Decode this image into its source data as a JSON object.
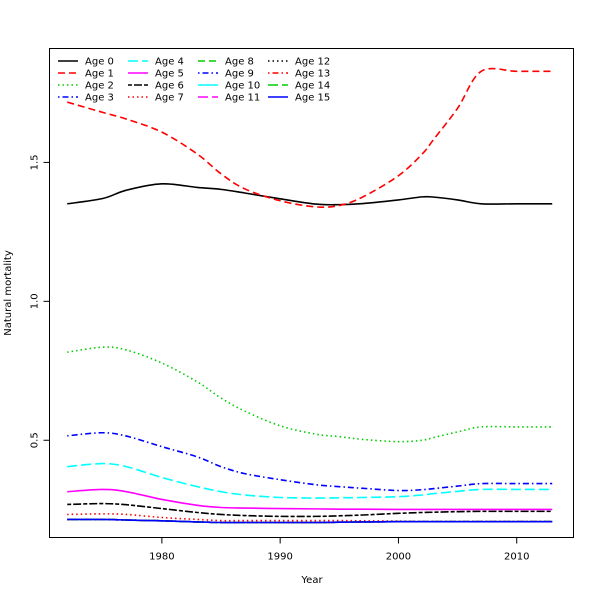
{
  "chart_data": {
    "type": "line",
    "title": "",
    "xlabel": "Year",
    "ylabel": "Natural mortality",
    "xlim": [
      1970.5,
      2014.8
    ],
    "ylim": [
      0.15,
      1.91
    ],
    "xticks": [
      1980,
      1990,
      2000,
      2010
    ],
    "yticks": [
      0.5,
      1.0,
      1.5
    ],
    "ytick_labels": [
      "0.5",
      "1.0",
      "1.5"
    ],
    "grid": false,
    "legend_position": "top-left",
    "legend_columns": 4,
    "x": [
      1972,
      1975,
      1977,
      1980,
      1983,
      1985,
      1987,
      1990,
      1993,
      1995,
      1997,
      2000,
      2002,
      2003,
      2005,
      2007,
      2010,
      2013
    ],
    "series": [
      {
        "name": "Age 0",
        "color": "#000000",
        "dash": "solid",
        "values": [
          1.351,
          1.37,
          1.4,
          1.423,
          1.41,
          1.403,
          1.39,
          1.369,
          1.35,
          1.348,
          1.352,
          1.365,
          1.376,
          1.375,
          1.365,
          1.351,
          1.351,
          1.351
        ]
      },
      {
        "name": "Age 1",
        "color": "#ff0000",
        "dash": "dashed",
        "values": [
          1.717,
          1.68,
          1.656,
          1.609,
          1.53,
          1.459,
          1.405,
          1.362,
          1.34,
          1.345,
          1.376,
          1.452,
          1.53,
          1.584,
          1.695,
          1.828,
          1.828,
          1.828
        ]
      },
      {
        "name": "Age 2",
        "color": "#00cd00",
        "dash": "dotted",
        "values": [
          0.817,
          0.835,
          0.825,
          0.778,
          0.71,
          0.652,
          0.605,
          0.552,
          0.522,
          0.513,
          0.503,
          0.495,
          0.5,
          0.51,
          0.53,
          0.548,
          0.548,
          0.548
        ]
      },
      {
        "name": "Age 3",
        "color": "#0000ff",
        "dash": "dotdash",
        "values": [
          0.516,
          0.527,
          0.515,
          0.477,
          0.44,
          0.405,
          0.38,
          0.358,
          0.34,
          0.333,
          0.327,
          0.319,
          0.322,
          0.326,
          0.335,
          0.344,
          0.344,
          0.344
        ]
      },
      {
        "name": "Age 4",
        "color": "#00ffff",
        "dash": "longdash",
        "values": [
          0.405,
          0.416,
          0.405,
          0.366,
          0.333,
          0.315,
          0.303,
          0.294,
          0.292,
          0.293,
          0.294,
          0.297,
          0.303,
          0.308,
          0.316,
          0.323,
          0.323,
          0.323
        ]
      },
      {
        "name": "Age 5",
        "color": "#ff00ff",
        "dash": "solid",
        "values": [
          0.315,
          0.323,
          0.315,
          0.287,
          0.266,
          0.258,
          0.256,
          0.254,
          0.253,
          0.252,
          0.252,
          0.251,
          0.251,
          0.251,
          0.251,
          0.251,
          0.251,
          0.251
        ]
      },
      {
        "name": "Age 6",
        "color": "#000000",
        "dash": "twodash",
        "values": [
          0.269,
          0.272,
          0.268,
          0.254,
          0.24,
          0.233,
          0.229,
          0.226,
          0.226,
          0.228,
          0.231,
          0.237,
          0.24,
          0.241,
          0.243,
          0.244,
          0.244,
          0.244
        ]
      },
      {
        "name": "Age 7",
        "color": "#ff0000",
        "dash": "dotted",
        "values": [
          0.233,
          0.235,
          0.233,
          0.222,
          0.215,
          0.211,
          0.211,
          0.211,
          0.211,
          0.211,
          0.21,
          0.209,
          0.208,
          0.208,
          0.208,
          0.208,
          0.208,
          0.208
        ]
      },
      {
        "name": "Age 8",
        "color": "#00cd00",
        "dash": "dashed",
        "values": [
          0.215,
          0.215,
          0.213,
          0.21,
          0.206,
          0.204,
          0.204,
          0.204,
          0.204,
          0.205,
          0.206,
          0.207,
          0.207,
          0.207,
          0.207,
          0.207,
          0.207,
          0.207
        ]
      },
      {
        "name": "Age 9",
        "color": "#0000ff",
        "dash": "dotdash",
        "values": [
          0.215,
          0.215,
          0.213,
          0.21,
          0.206,
          0.204,
          0.204,
          0.204,
          0.204,
          0.205,
          0.206,
          0.207,
          0.207,
          0.207,
          0.207,
          0.207,
          0.207,
          0.207
        ]
      },
      {
        "name": "Age 10",
        "color": "#00ffff",
        "dash": "solid",
        "values": [
          0.215,
          0.215,
          0.213,
          0.21,
          0.206,
          0.204,
          0.204,
          0.204,
          0.204,
          0.205,
          0.206,
          0.207,
          0.207,
          0.207,
          0.207,
          0.207,
          0.207,
          0.207
        ]
      },
      {
        "name": "Age 11",
        "color": "#ff00ff",
        "dash": "longdash",
        "values": [
          0.215,
          0.215,
          0.213,
          0.21,
          0.206,
          0.204,
          0.204,
          0.204,
          0.204,
          0.205,
          0.206,
          0.207,
          0.207,
          0.207,
          0.207,
          0.207,
          0.207,
          0.207
        ]
      },
      {
        "name": "Age 12",
        "color": "#000000",
        "dash": "dotted",
        "values": [
          0.215,
          0.215,
          0.213,
          0.21,
          0.206,
          0.204,
          0.204,
          0.204,
          0.204,
          0.205,
          0.206,
          0.207,
          0.207,
          0.207,
          0.207,
          0.207,
          0.207,
          0.207
        ]
      },
      {
        "name": "Age 13",
        "color": "#ff0000",
        "dash": "dotdash",
        "values": [
          0.215,
          0.215,
          0.213,
          0.21,
          0.206,
          0.204,
          0.204,
          0.204,
          0.204,
          0.205,
          0.206,
          0.207,
          0.207,
          0.207,
          0.207,
          0.207,
          0.207,
          0.207
        ]
      },
      {
        "name": "Age 14",
        "color": "#00cd00",
        "dash": "longdash",
        "values": [
          0.215,
          0.215,
          0.213,
          0.21,
          0.206,
          0.204,
          0.204,
          0.204,
          0.204,
          0.205,
          0.206,
          0.207,
          0.207,
          0.207,
          0.207,
          0.207,
          0.207,
          0.207
        ]
      },
      {
        "name": "Age 15",
        "color": "#0000ff",
        "dash": "solid",
        "values": [
          0.215,
          0.215,
          0.213,
          0.21,
          0.206,
          0.204,
          0.204,
          0.204,
          0.204,
          0.205,
          0.206,
          0.207,
          0.207,
          0.207,
          0.207,
          0.207,
          0.207,
          0.207
        ]
      }
    ]
  }
}
